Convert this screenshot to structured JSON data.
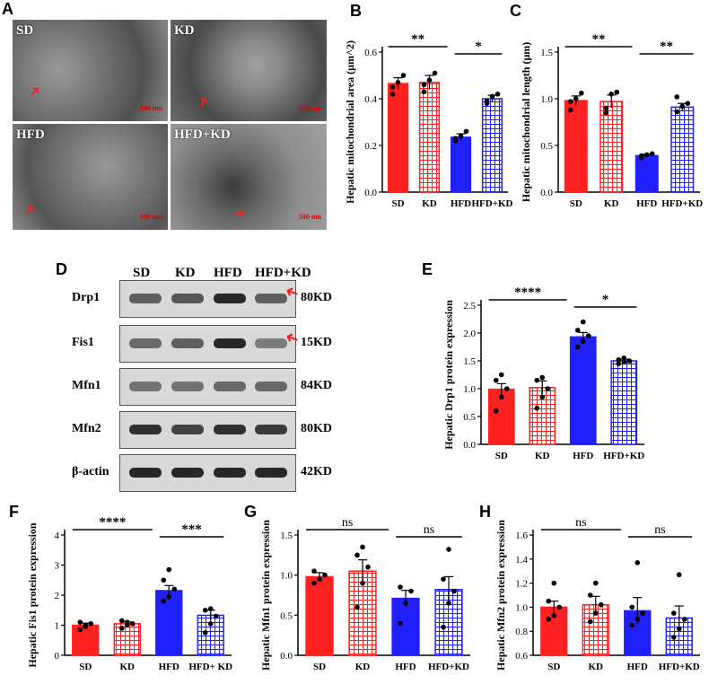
{
  "panels": {
    "A": "A",
    "B": "B",
    "C": "C",
    "D": "D",
    "E": "E",
    "F": "F",
    "G": "G",
    "H": "H"
  },
  "em_images": [
    {
      "label": "SD",
      "scale": "500 nm"
    },
    {
      "label": "KD",
      "scale": "500 nm"
    },
    {
      "label": "HFD",
      "scale": "500 nm"
    },
    {
      "label": "HFD+KD",
      "scale": "500 nm"
    }
  ],
  "blot": {
    "lanes": [
      "SD",
      "KD",
      "HFD",
      "HFD+KD"
    ],
    "rows": [
      {
        "name": "Drp1",
        "kd": "80KD",
        "intensity": [
          0.55,
          0.6,
          0.85,
          0.55
        ]
      },
      {
        "name": "Fis1",
        "kd": "15KD",
        "intensity": [
          0.5,
          0.55,
          0.85,
          0.4
        ]
      },
      {
        "name": "Mfn1",
        "kd": "84KD",
        "intensity": [
          0.45,
          0.45,
          0.5,
          0.5
        ]
      },
      {
        "name": "Mfn2",
        "kd": "80KD",
        "intensity": [
          0.8,
          0.7,
          0.8,
          0.75
        ]
      },
      {
        "name": "β-actin",
        "kd": "42KD",
        "intensity": [
          0.85,
          0.85,
          0.85,
          0.85
        ]
      }
    ]
  },
  "chart_data": [
    {
      "id": "B",
      "type": "bar",
      "categories": [
        "SD",
        "KD",
        "HFD",
        "HFD+KD"
      ],
      "values": [
        0.465,
        0.47,
        0.235,
        0.4
      ],
      "errors": [
        0.025,
        0.03,
        0.015,
        0.015
      ],
      "ylabel": "Hepatic mitochondrial area (μm^2)",
      "ylim": [
        0,
        0.6
      ],
      "yticks": [
        "0.0",
        "0.2",
        "0.4",
        "0.6"
      ],
      "points": [
        [
          0.42,
          0.47,
          0.5,
          0.45
        ],
        [
          0.43,
          0.48,
          0.51,
          0.46
        ],
        [
          0.22,
          0.24,
          0.26,
          0.23
        ],
        [
          0.39,
          0.41,
          0.42,
          0.38
        ]
      ],
      "sig": [
        {
          "from": 0,
          "to": 2,
          "text": "**"
        },
        {
          "from": 2,
          "to": 3,
          "text": "*"
        }
      ]
    },
    {
      "id": "C",
      "type": "bar",
      "categories": [
        "SD",
        "KD",
        "HFD",
        "HFD+KD"
      ],
      "values": [
        0.98,
        0.97,
        0.39,
        0.91
      ],
      "errors": [
        0.05,
        0.07,
        0.015,
        0.04
      ],
      "ylabel": "Hepatic mitochondrial length (μm)",
      "ylim": [
        0,
        1.5
      ],
      "yticks": [
        "0.0",
        "0.5",
        "1.0",
        "1.5"
      ],
      "points": [
        [
          0.88,
          1.0,
          1.06,
          0.97
        ],
        [
          0.85,
          1.05,
          1.07,
          0.9
        ],
        [
          0.37,
          0.4,
          0.41,
          0.39
        ],
        [
          0.86,
          0.92,
          0.95,
          1.02
        ]
      ],
      "sig": [
        {
          "from": 0,
          "to": 2,
          "text": "**"
        },
        {
          "from": 2,
          "to": 3,
          "text": "**"
        }
      ]
    },
    {
      "id": "E",
      "type": "bar",
      "categories": [
        "SD",
        "KD",
        "HFD",
        "HFD+KD"
      ],
      "values": [
        0.99,
        1.02,
        1.93,
        1.5
      ],
      "errors": [
        0.1,
        0.12,
        0.08,
        0.03
      ],
      "ylabel": "Hepatic Drp1 protein expression",
      "ylim": [
        0,
        2.5
      ],
      "yticks": [
        "0.0",
        "0.5",
        "1.0",
        "1.5",
        "2.0",
        "2.5"
      ],
      "points": [
        [
          0.6,
          0.85,
          1.0,
          1.15,
          1.25
        ],
        [
          0.65,
          0.85,
          1.0,
          1.15,
          1.2
        ],
        [
          1.75,
          1.85,
          1.95,
          2.05,
          2.2
        ],
        [
          1.45,
          1.48,
          1.5,
          1.52,
          1.55
        ]
      ],
      "sig": [
        {
          "from": 0,
          "to": 2,
          "text": "****"
        },
        {
          "from": 2,
          "to": 3,
          "text": "*"
        }
      ]
    },
    {
      "id": "F",
      "type": "bar",
      "categories": [
        "SD",
        "KD",
        "HFD",
        "HFD+ KD"
      ],
      "values": [
        1.0,
        1.05,
        2.15,
        1.33
      ],
      "errors": [
        0.07,
        0.06,
        0.17,
        0.17
      ],
      "ylabel": "Hepatic Fis1 protein expression",
      "ylim": [
        0,
        4
      ],
      "yticks": [
        "0",
        "1",
        "2",
        "3",
        "4"
      ],
      "points": [
        [
          0.85,
          0.95,
          1.05,
          1.1,
          1.0
        ],
        [
          0.9,
          1.0,
          1.05,
          1.15,
          1.1
        ],
        [
          1.8,
          1.95,
          2.2,
          2.5,
          2.85
        ],
        [
          0.75,
          1.05,
          1.3,
          1.5,
          1.55
        ]
      ],
      "sig": [
        {
          "from": 0,
          "to": 2,
          "text": "****"
        },
        {
          "from": 2,
          "to": 3,
          "text": "***"
        }
      ]
    },
    {
      "id": "G",
      "type": "bar",
      "categories": [
        "SD",
        "KD",
        "HFD",
        "HFD+KD"
      ],
      "values": [
        0.98,
        1.05,
        0.71,
        0.82
      ],
      "errors": [
        0.05,
        0.14,
        0.1,
        0.16
      ],
      "ylabel": "Hepatic Mfn1 protein expression",
      "ylim": [
        0,
        1.5
      ],
      "yticks": [
        "0.0",
        "0.5",
        "1.0",
        "1.5"
      ],
      "points": [
        [
          0.9,
          0.95,
          1.0,
          1.05
        ],
        [
          0.6,
          0.9,
          1.1,
          1.25,
          1.35
        ],
        [
          0.4,
          0.65,
          0.8,
          0.85
        ],
        [
          0.35,
          0.65,
          0.8,
          0.95,
          1.32
        ]
      ],
      "sig": [
        {
          "from": 0,
          "to": 2,
          "text": "ns"
        },
        {
          "from": 2,
          "to": 3,
          "text": "ns"
        }
      ]
    },
    {
      "id": "H",
      "type": "bar",
      "categories": [
        "SD",
        "KD",
        "HFD",
        "HFD+KD"
      ],
      "values": [
        1.0,
        1.02,
        0.97,
        0.91
      ],
      "errors": [
        0.05,
        0.07,
        0.11,
        0.1
      ],
      "ylabel": "Hepatic Mfn2 protein expression",
      "ylim": [
        0.6,
        1.6
      ],
      "yticks": [
        "0.6",
        "0.8",
        "1.0",
        "1.2",
        "1.4",
        "1.6"
      ],
      "points": [
        [
          0.9,
          0.93,
          1.0,
          1.05,
          1.2
        ],
        [
          0.88,
          0.95,
          1.02,
          1.1,
          1.2
        ],
        [
          0.85,
          0.9,
          0.95,
          1.0,
          1.37
        ],
        [
          0.75,
          0.82,
          0.9,
          0.95,
          1.27
        ]
      ],
      "sig": [
        {
          "from": 0,
          "to": 2,
          "text": "ns"
        },
        {
          "from": 2,
          "to": 3,
          "text": "ns"
        }
      ]
    }
  ],
  "colors": {
    "sd": "#ff2020",
    "kd": "#ff2020",
    "hfd": "#2020ff",
    "hfdkd": "#2020ff"
  }
}
